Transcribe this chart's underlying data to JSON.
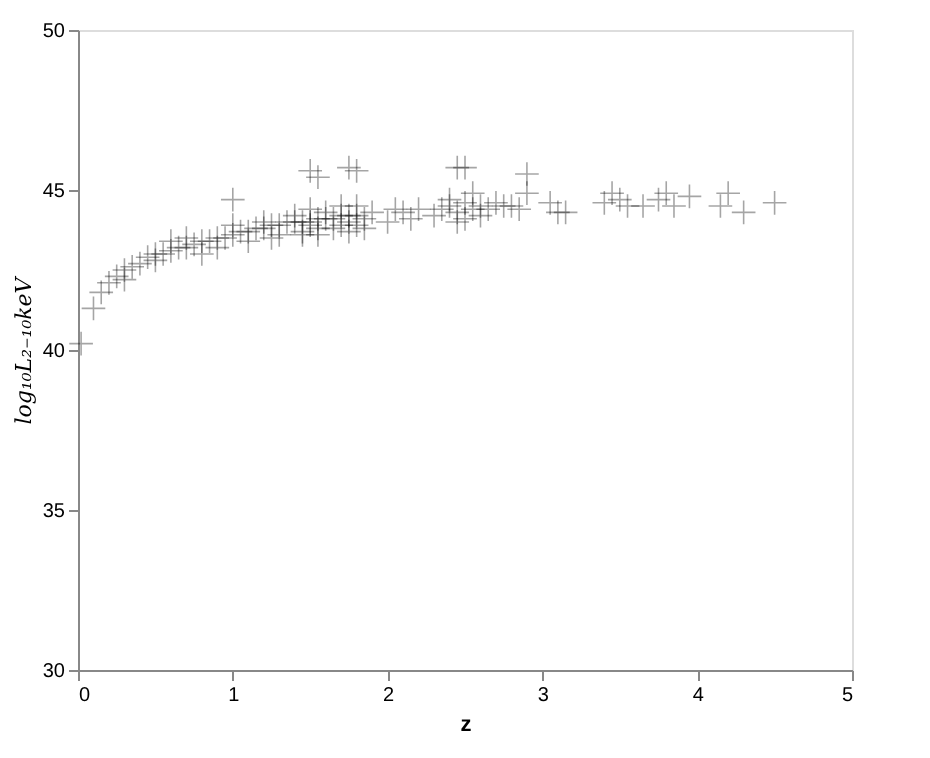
{
  "chart_data": {
    "type": "scatter",
    "xlabel": "z",
    "ylabel": "log₁₀L₂₋₁₀keV",
    "xlim": [
      0,
      5
    ],
    "xticks": [
      0,
      1,
      2,
      3,
      4,
      5
    ],
    "ylim": [
      30,
      50
    ],
    "yticks": [
      30,
      35,
      40,
      45,
      50
    ],
    "marker": "cross",
    "grid": false,
    "series": [
      {
        "color": "#000000",
        "x": [
          0.02,
          0.1,
          0.15,
          0.2,
          0.25,
          0.3,
          0.35,
          0.4,
          0.45,
          0.5,
          0.55,
          0.6,
          0.65,
          0.7,
          0.75,
          0.8,
          0.85,
          0.9,
          0.95,
          1.0,
          1.05,
          1.1,
          1.15,
          1.2,
          1.25,
          1.3,
          1.35,
          1.4,
          1.45,
          1.5,
          1.55,
          1.6,
          1.65,
          1.7,
          1.75,
          1.8,
          1.85,
          1.9,
          0.3,
          0.5,
          0.7,
          0.9,
          1.1,
          1.3,
          1.45,
          1.55,
          1.65,
          1.75,
          1.85,
          0.6,
          0.8,
          1.0,
          1.2,
          1.4,
          1.5,
          1.6,
          1.7,
          1.8,
          1.25,
          1.45,
          1.5,
          1.55,
          1.75,
          1.8,
          1.7,
          2.0,
          2.05,
          2.1,
          2.15,
          2.2,
          2.3,
          2.35,
          2.4,
          2.45,
          2.5,
          2.55,
          2.6,
          2.65,
          2.7,
          2.75,
          2.8,
          2.85,
          2.45,
          2.5,
          2.4,
          2.55,
          2.6,
          2.9,
          3.05,
          3.1,
          3.15,
          3.4,
          3.45,
          3.5,
          3.55,
          3.65,
          3.75,
          3.8,
          3.85,
          3.95,
          4.15,
          4.2,
          4.3,
          4.5,
          1.0,
          1.5,
          1.55,
          1.75,
          1.8,
          2.45,
          2.5,
          2.9
        ],
        "values": [
          40.2,
          41.3,
          41.8,
          42.1,
          42.3,
          42.5,
          42.6,
          42.7,
          42.9,
          43.0,
          43.0,
          43.1,
          43.2,
          43.2,
          43.3,
          43.4,
          43.4,
          43.5,
          43.5,
          43.6,
          43.7,
          43.7,
          43.8,
          43.8,
          43.9,
          43.9,
          44.0,
          44.0,
          44.0,
          44.0,
          44.1,
          44.1,
          44.1,
          44.2,
          44.2,
          44.2,
          44.1,
          44.3,
          42.2,
          42.8,
          43.5,
          43.2,
          43.4,
          43.6,
          43.6,
          43.6,
          43.8,
          43.7,
          43.8,
          43.4,
          43.0,
          43.9,
          44.0,
          44.2,
          44.4,
          44.3,
          44.5,
          44.5,
          43.5,
          43.7,
          43.9,
          43.8,
          44.0,
          43.9,
          43.9,
          44.0,
          44.4,
          44.3,
          44.1,
          44.4,
          44.2,
          44.4,
          44.5,
          44.3,
          44.6,
          44.4,
          44.5,
          44.4,
          44.6,
          44.5,
          44.5,
          44.4,
          44.0,
          44.1,
          44.7,
          44.9,
          44.2,
          44.9,
          44.6,
          44.3,
          44.3,
          44.6,
          44.9,
          44.7,
          44.5,
          44.5,
          44.7,
          44.9,
          44.5,
          44.8,
          44.5,
          44.9,
          44.3,
          44.6,
          44.7,
          45.6,
          45.4,
          45.7,
          45.6,
          45.7,
          45.7,
          45.5
        ]
      }
    ]
  }
}
